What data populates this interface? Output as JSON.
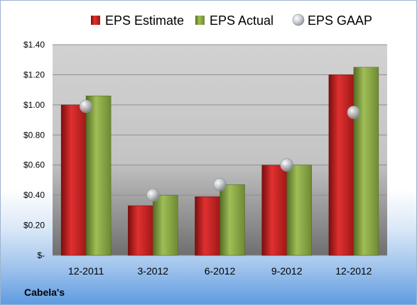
{
  "chart_data": {
    "type": "bar",
    "categories": [
      "12-2011",
      "3-2012",
      "6-2012",
      "9-2012",
      "12-2012"
    ],
    "series": [
      {
        "name": "EPS Estimate",
        "type": "bar",
        "color": "#c0201f",
        "values": [
          1.0,
          0.33,
          0.39,
          0.6,
          1.2
        ]
      },
      {
        "name": "EPS Actual",
        "type": "bar",
        "color": "#8caa45",
        "values": [
          1.06,
          0.4,
          0.47,
          0.6,
          1.25
        ]
      },
      {
        "name": "EPS GAAP",
        "type": "marker",
        "color": "#b8bcc4",
        "values": [
          0.99,
          0.4,
          0.47,
          0.6,
          0.95
        ]
      }
    ],
    "ylim": [
      0,
      1.4
    ],
    "yticks": [
      {
        "value": 0,
        "label": "$-"
      },
      {
        "value": 0.2,
        "label": "$0.20"
      },
      {
        "value": 0.4,
        "label": "$0.40"
      },
      {
        "value": 0.6,
        "label": "$0.60"
      },
      {
        "value": 0.8,
        "label": "$0.80"
      },
      {
        "value": 1.0,
        "label": "$1.00"
      },
      {
        "value": 1.2,
        "label": "$1.20"
      },
      {
        "value": 1.4,
        "label": "$1.40"
      }
    ],
    "grid": true,
    "legend_position": "top"
  },
  "footer": {
    "company": "Cabela's"
  }
}
